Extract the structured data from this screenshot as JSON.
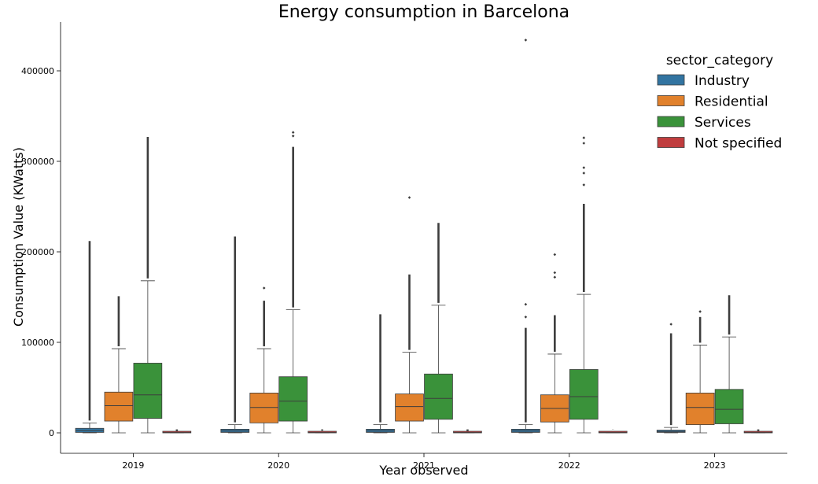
{
  "chart_data": {
    "type": "box",
    "title": "Energy consumption in Barcelona",
    "xlabel": "Year observed",
    "ylabel": "Consumption Value (KWatts)",
    "ylim": [
      -20000,
      455000
    ],
    "yticks": [
      0,
      100000,
      200000,
      300000,
      400000
    ],
    "ytick_labels": [
      "0",
      "100000",
      "200000",
      "300000",
      "400000"
    ],
    "categories": [
      "2019",
      "2020",
      "2021",
      "2022",
      "2023"
    ],
    "legend": {
      "title": "sector_category",
      "position": "top-right"
    },
    "series": [
      {
        "name": "Industry",
        "color": "#3274a1",
        "boxes": [
          {
            "q1": 500,
            "median": 2500,
            "q3": 5000,
            "whisker_low": 0,
            "whisker_high": 11000,
            "outlier_max": 212000
          },
          {
            "q1": 500,
            "median": 2000,
            "q3": 4000,
            "whisker_low": 0,
            "whisker_high": 9000,
            "outlier_max": 217000
          },
          {
            "q1": 500,
            "median": 2000,
            "q3": 4000,
            "whisker_low": 0,
            "whisker_high": 9000,
            "outlier_max": 131000
          },
          {
            "q1": 500,
            "median": 2000,
            "q3": 4000,
            "whisker_low": 0,
            "whisker_high": 9000,
            "outlier_max": 116000,
            "extra_outliers": [
              128000,
              142000,
              434000
            ]
          },
          {
            "q1": 500,
            "median": 1500,
            "q3": 3000,
            "whisker_low": 0,
            "whisker_high": 6000,
            "outlier_max": 110000,
            "extra_outliers": [
              120000
            ]
          }
        ]
      },
      {
        "name": "Residential",
        "color": "#e1812c",
        "boxes": [
          {
            "q1": 13000,
            "median": 30000,
            "q3": 45000,
            "whisker_low": 0,
            "whisker_high": 93000,
            "outlier_max": 151000
          },
          {
            "q1": 11000,
            "median": 28000,
            "q3": 44000,
            "whisker_low": 0,
            "whisker_high": 93000,
            "outlier_max": 146000,
            "extra_outliers": [
              160000
            ]
          },
          {
            "q1": 13000,
            "median": 29000,
            "q3": 43000,
            "whisker_low": 0,
            "whisker_high": 89000,
            "outlier_max": 175000,
            "extra_outliers": [
              260000
            ]
          },
          {
            "q1": 12000,
            "median": 27000,
            "q3": 42000,
            "whisker_low": 0,
            "whisker_high": 87000,
            "outlier_max": 130000,
            "extra_outliers": [
              172000,
              177000,
              197000
            ]
          },
          {
            "q1": 9000,
            "median": 28000,
            "q3": 44000,
            "whisker_low": 0,
            "whisker_high": 97000,
            "outlier_max": 128000,
            "extra_outliers": [
              134000
            ]
          }
        ]
      },
      {
        "name": "Services",
        "color": "#3a923a",
        "boxes": [
          {
            "q1": 16000,
            "median": 42000,
            "q3": 77000,
            "whisker_low": 0,
            "whisker_high": 168000,
            "outlier_max": 327000
          },
          {
            "q1": 13000,
            "median": 35000,
            "q3": 62000,
            "whisker_low": 0,
            "whisker_high": 136000,
            "outlier_max": 316000,
            "extra_outliers": [
              328000,
              332000
            ]
          },
          {
            "q1": 15000,
            "median": 38000,
            "q3": 65000,
            "whisker_low": 0,
            "whisker_high": 141000,
            "outlier_max": 232000
          },
          {
            "q1": 15000,
            "median": 40000,
            "q3": 70000,
            "whisker_low": 0,
            "whisker_high": 153000,
            "outlier_max": 253000,
            "extra_outliers": [
              274000,
              287000,
              293000,
              320000,
              326000
            ]
          },
          {
            "q1": 10000,
            "median": 26000,
            "q3": 48000,
            "whisker_low": 0,
            "whisker_high": 106000,
            "outlier_max": 152000
          }
        ]
      },
      {
        "name": "Not specified",
        "color": "#c03d3e",
        "boxes": [
          {
            "q1": 0,
            "median": 300,
            "q3": 700,
            "whisker_low": 0,
            "whisker_high": 1200,
            "outlier_max": 2000
          },
          {
            "q1": 0,
            "median": 300,
            "q3": 700,
            "whisker_low": 0,
            "whisker_high": 1200,
            "outlier_max": 2500
          },
          {
            "q1": 0,
            "median": 300,
            "q3": 700,
            "whisker_low": 0,
            "whisker_high": 1200,
            "outlier_max": 2000
          },
          {
            "q1": 0,
            "median": 300,
            "q3": 700,
            "whisker_low": 0,
            "whisker_high": 1200,
            "outlier_max": 4000
          },
          {
            "q1": 0,
            "median": 300,
            "q3": 700,
            "whisker_low": 0,
            "whisker_high": 1200,
            "outlier_max": 2000
          }
        ]
      }
    ],
    "grid": false
  }
}
